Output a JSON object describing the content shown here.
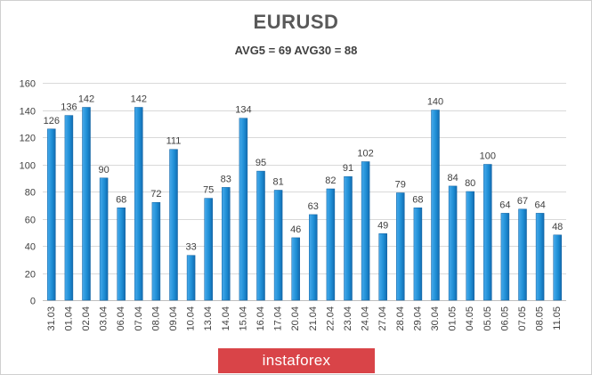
{
  "chart_data": {
    "type": "bar",
    "title": "EURUSD",
    "subtitle": "AVG5 = 69 AVG30 = 88",
    "xlabel": "",
    "ylabel": "",
    "ylim": [
      0,
      160
    ],
    "yticks": [
      0,
      20,
      40,
      60,
      80,
      100,
      120,
      140,
      160
    ],
    "grid": true,
    "legend": "none",
    "bar_color": "#1f8fd6",
    "categories": [
      "31.03",
      "01.04",
      "02.04",
      "03.04",
      "06.04",
      "07.04",
      "08.04",
      "09.04",
      "10.04",
      "13.04",
      "14.04",
      "15.04",
      "16.04",
      "17.04",
      "20.04",
      "21.04",
      "22.04",
      "23.04",
      "24.04",
      "27.04",
      "28.04",
      "29.04",
      "30.04",
      "01.05",
      "04.05",
      "05.05",
      "06.05",
      "07.05",
      "08.05",
      "11.05"
    ],
    "values": [
      126,
      136,
      142,
      90,
      68,
      142,
      72,
      111,
      33,
      75,
      83,
      134,
      95,
      81,
      46,
      63,
      82,
      91,
      102,
      49,
      79,
      68,
      140,
      84,
      80,
      100,
      64,
      67,
      64,
      48
    ]
  },
  "watermark": {
    "text": "instaforex",
    "color": "#d94448"
  }
}
